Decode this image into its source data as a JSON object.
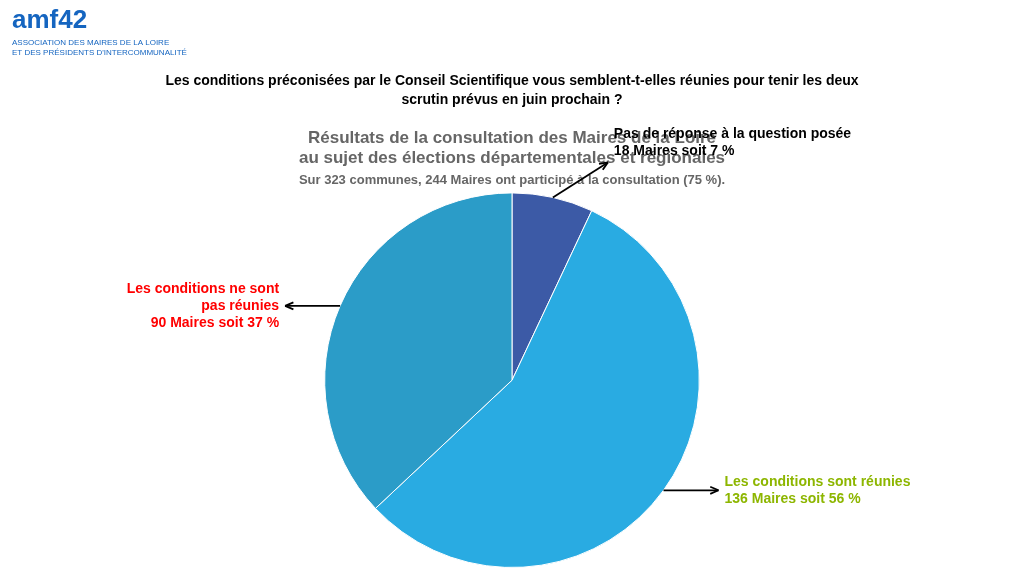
{
  "chart_data": {
    "type": "pie",
    "title": [
      "Résultats de la consultation des Maires de la Loire",
      "au sujet des élections départementales et régionales"
    ],
    "subtitle": "Sur 323 communes, 244 Maires ont participé à la consultation (75 %).",
    "values": [
      7,
      56,
      37
    ],
    "colors": [
      "#3C5AA6",
      "#29ABE2",
      "#2B9CC8"
    ],
    "annotations": [
      {
        "text": [
          "Pas de réponse à la question posée",
          "18 Maires soit 7 %"
        ],
        "color": "#000000"
      },
      {
        "text": [
          "Les conditions sont réunies",
          "136 Maires soit 56 %"
        ],
        "color": "#8DB600"
      },
      {
        "text": [
          "Les conditions ne sont",
          "pas réunies",
          "90 Maires soit 37 %"
        ],
        "color": "#FF0000"
      },
      {
        "text": [
          "Les conditions préconisées par le Conseil Scientifique vous semblent-t-elles réunies pour tenir les deux",
          "scrutin prévus en juin prochain ?"
        ],
        "color": "#000000"
      },
      {
        "text": [
          "amf42",
          "ASSOCIATION DES MAIRES DE LA LOIRE",
          "ET DES PRÉSIDENTS D'INTERCOMMUNALITÉ"
        ],
        "color": "#1565C0"
      }
    ]
  }
}
